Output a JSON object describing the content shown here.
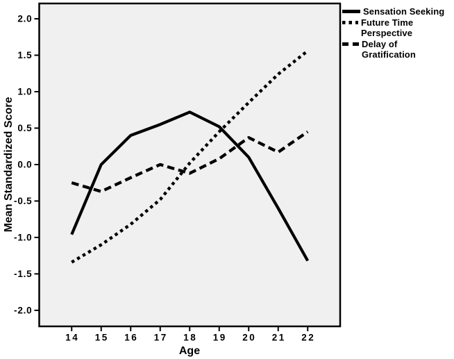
{
  "chart_data": {
    "type": "line",
    "title": "",
    "xlabel": "Age",
    "ylabel": "Mean Standardized Score",
    "x": [
      14,
      15,
      16,
      17,
      18,
      19,
      20,
      21,
      22
    ],
    "x_tick_labels": [
      "14",
      "15",
      "16",
      "17",
      "18",
      "19",
      "20",
      "21",
      "22"
    ],
    "y_ticks": [
      2.0,
      1.5,
      1.0,
      0.5,
      0.0,
      -0.5,
      -1.0,
      -1.5,
      -2.0
    ],
    "y_tick_labels": [
      "2.0",
      "1.5",
      "1.0",
      "0.5",
      "0.0",
      "-0.5",
      "-1.0",
      "-1.5",
      "-2.0"
    ],
    "xlim": [
      12.9,
      23.1
    ],
    "ylim": [
      -2.22,
      2.21
    ],
    "grid": false,
    "legend_position": "top-right-outside",
    "line_color": "#000000",
    "plot_bg": "#f0f0f0",
    "series": [
      {
        "name": "Sensation Seeking",
        "style": "solid",
        "values": [
          -0.96,
          0.0,
          0.4,
          0.55,
          0.72,
          0.52,
          0.1,
          -0.6,
          -1.32
        ]
      },
      {
        "name": "Future Time Perspective",
        "style": "dotted",
        "values": [
          -1.34,
          -1.1,
          -0.82,
          -0.48,
          0.02,
          0.45,
          0.85,
          1.24,
          1.56
        ]
      },
      {
        "name": "Delay of Gratification",
        "style": "dashed",
        "values": [
          -0.25,
          -0.37,
          -0.18,
          0.0,
          -0.12,
          0.08,
          0.37,
          0.17,
          0.45
        ]
      }
    ]
  }
}
